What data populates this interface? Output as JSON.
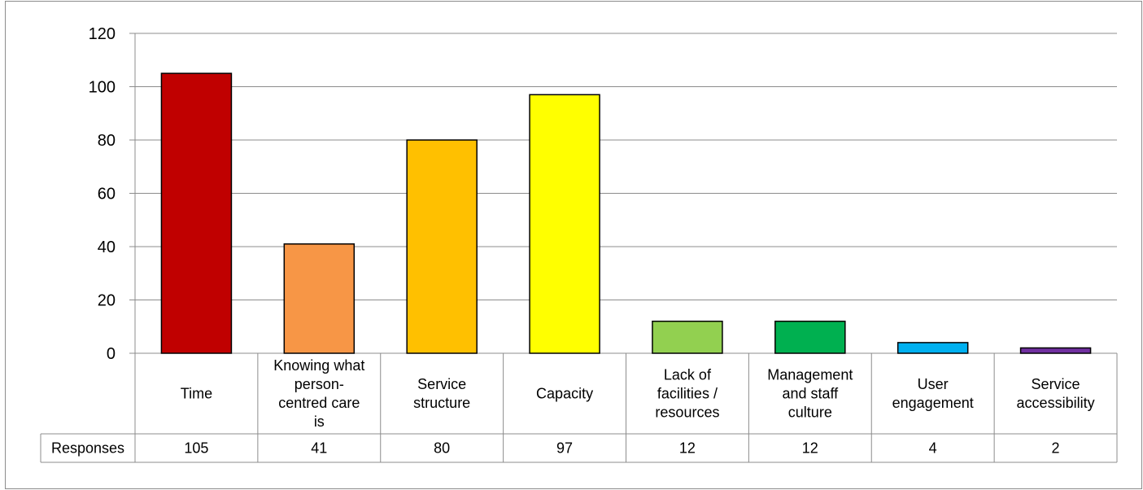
{
  "chart_data": {
    "type": "bar",
    "categories": [
      [
        "Time"
      ],
      [
        "Knowing what",
        "person-",
        "centred care",
        "is"
      ],
      [
        "Service",
        "structure"
      ],
      [
        "Capacity"
      ],
      [
        "Lack of",
        "facilities /",
        "resources"
      ],
      [
        "Management",
        "and staff",
        "culture"
      ],
      [
        "User",
        "engagement"
      ],
      [
        "Service",
        "accessibility"
      ]
    ],
    "category_names": [
      "Time",
      "Knowing what person-centred care is",
      "Service structure",
      "Capacity",
      "Lack of facilities / resources",
      "Management and staff culture",
      "User engagement",
      "Service accessibility"
    ],
    "series": [
      {
        "name": "Responses",
        "values": [
          105,
          41,
          80,
          97,
          12,
          12,
          4,
          2
        ]
      }
    ],
    "bar_colors": [
      "#c00000",
      "#f79646",
      "#ffc000",
      "#ffff00",
      "#92d050",
      "#00b050",
      "#00b0f0",
      "#7030a0"
    ],
    "ylim": [
      0,
      120
    ],
    "yticks": [
      0,
      20,
      40,
      60,
      80,
      100,
      120
    ],
    "title": "",
    "xlabel": "",
    "ylabel": "",
    "grid": true,
    "data_table": true,
    "table_row_label": "Responses"
  }
}
